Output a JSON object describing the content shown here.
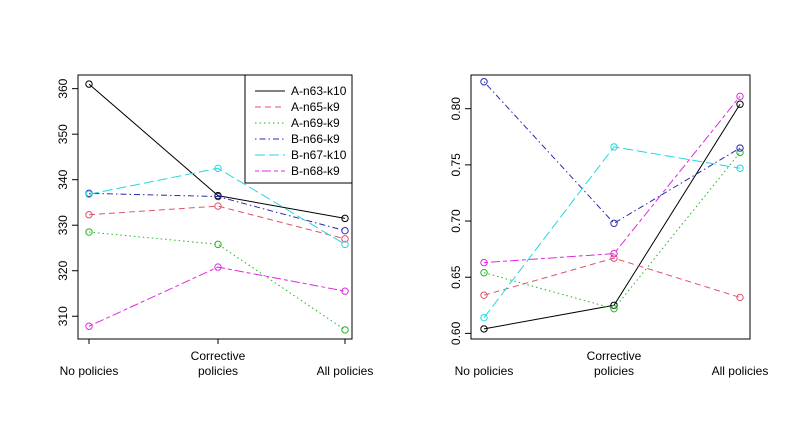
{
  "chart_data": [
    {
      "type": "line",
      "categories": [
        "No policies",
        "Corrective\npolicies",
        "All policies"
      ],
      "ylim": [
        305,
        363
      ],
      "yticks": [
        310,
        320,
        330,
        340,
        350,
        360
      ],
      "legend_position": "top-right",
      "series": [
        {
          "name": "A-n63-k10",
          "color": "#000000",
          "dash": "solid",
          "values": [
            361,
            336.5,
            331.5
          ]
        },
        {
          "name": "A-n65-k9",
          "color": "#DF536B",
          "dash": "dashed",
          "values": [
            332.3,
            334.2,
            327
          ]
        },
        {
          "name": "A-n69-k9",
          "color": "#22B522",
          "dash": "dotted",
          "values": [
            328.5,
            325.8,
            307
          ]
        },
        {
          "name": "B-n66-k9",
          "color": "#2A2AB0",
          "dash": "dotdash",
          "values": [
            337,
            336.3,
            328.8
          ]
        },
        {
          "name": "B-n67-k10",
          "color": "#22D8E0",
          "dash": "longdash",
          "values": [
            336.8,
            342.5,
            325.8
          ]
        },
        {
          "name": "B-n68-k9",
          "color": "#DE2BDE",
          "dash": "twodash",
          "values": [
            307.8,
            320.8,
            315.5
          ]
        }
      ]
    },
    {
      "type": "line",
      "categories": [
        "No policies",
        "Corrective\npolicies",
        "All policies"
      ],
      "ylim": [
        0.595,
        0.83
      ],
      "yticks": [
        0.6,
        0.65,
        0.7,
        0.75,
        0.8
      ],
      "ytick_labels": [
        "0.60",
        "0.65",
        "0.70",
        "0.75",
        "0.80"
      ],
      "series": [
        {
          "name": "A-n63-k10",
          "color": "#000000",
          "dash": "solid",
          "values": [
            0.604,
            0.625,
            0.804
          ]
        },
        {
          "name": "A-n65-k9",
          "color": "#DF536B",
          "dash": "dashed",
          "values": [
            0.634,
            0.667,
            0.632
          ]
        },
        {
          "name": "A-n69-k9",
          "color": "#22B522",
          "dash": "dotted",
          "values": [
            0.654,
            0.622,
            0.761
          ]
        },
        {
          "name": "B-n66-k9",
          "color": "#2A2AB0",
          "dash": "dotdash",
          "values": [
            0.824,
            0.698,
            0.765
          ]
        },
        {
          "name": "B-n67-k10",
          "color": "#22D8E0",
          "dash": "longdash",
          "values": [
            0.614,
            0.766,
            0.747
          ]
        },
        {
          "name": "B-n68-k9",
          "color": "#DE2BDE",
          "dash": "twodash",
          "values": [
            0.663,
            0.671,
            0.811
          ]
        }
      ]
    }
  ]
}
